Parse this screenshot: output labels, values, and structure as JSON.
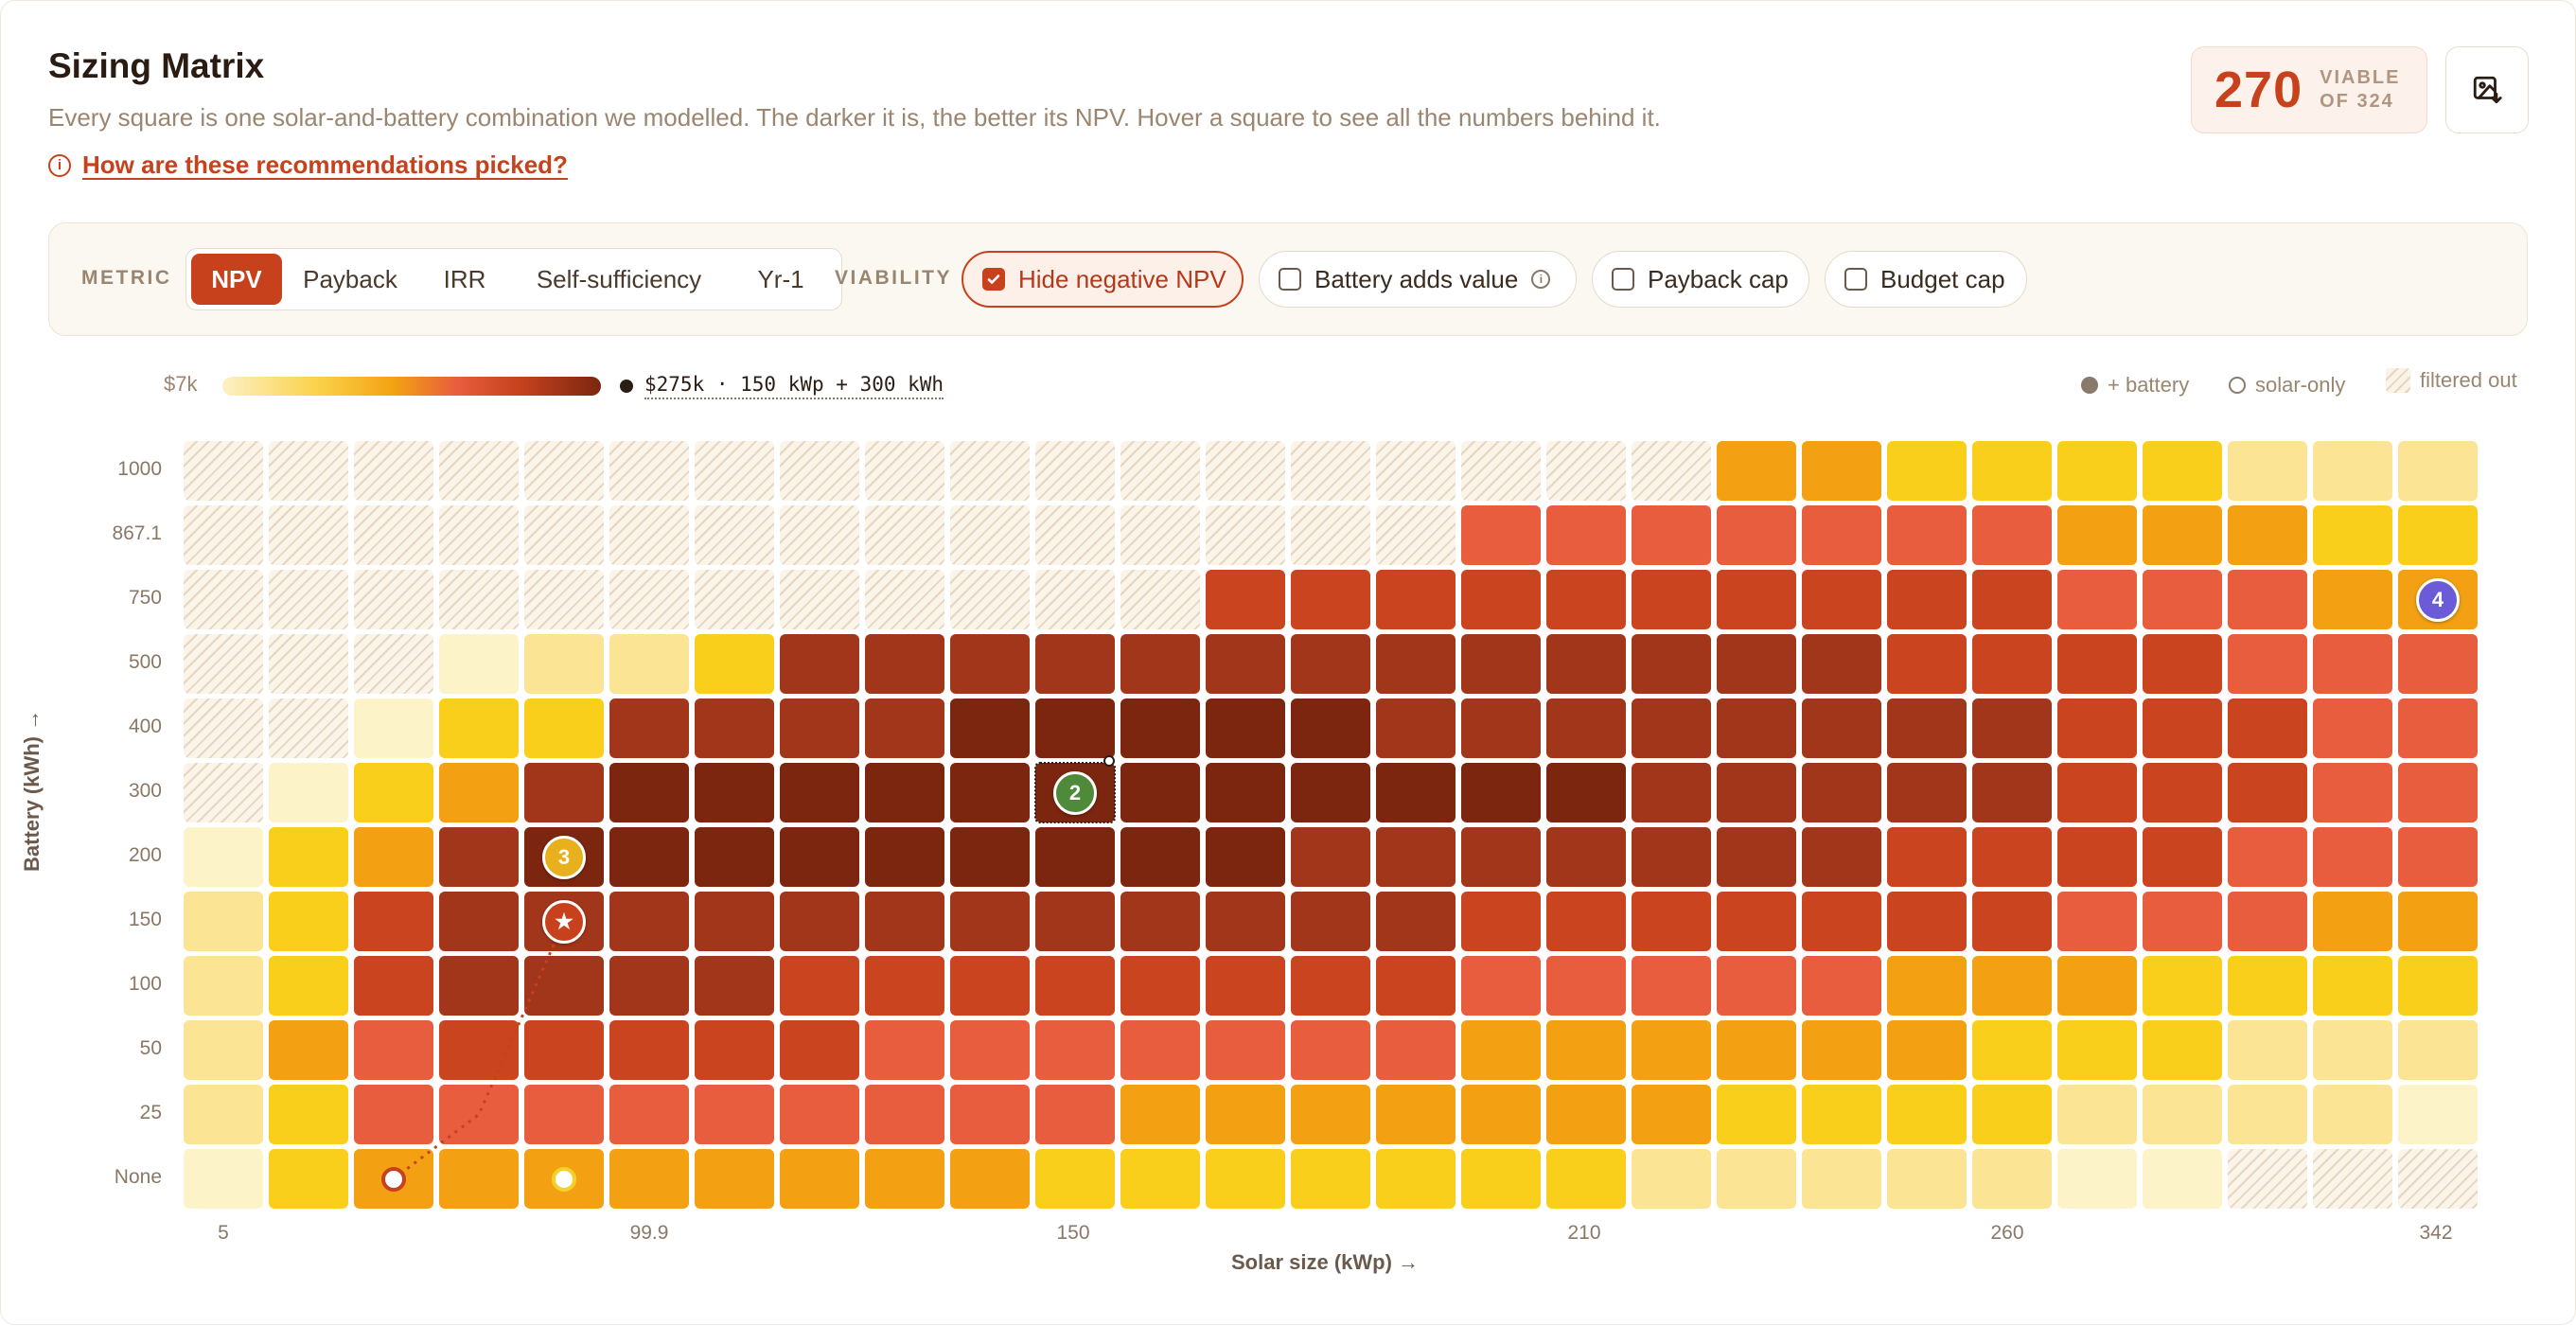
{
  "header": {
    "title": "Sizing Matrix",
    "subtitle": "Every square is one solar-and-battery combination we modelled. The darker it is, the better its NPV. Hover a square to see all the numbers behind it.",
    "help_link": "How are these recommendations picked?",
    "viable_count": "270",
    "viable_label_1": "VIABLE",
    "viable_label_2": "OF 324"
  },
  "icons": {
    "help": "info-circle-icon",
    "export": "image-export-icon"
  },
  "controls": {
    "metric_label": "METRIC",
    "metric_options": [
      "NPV",
      "Payback",
      "IRR",
      "Self-sufficiency",
      "Yr-1"
    ],
    "metric_selected": "NPV",
    "viability_label": "VIABILITY",
    "filters": [
      {
        "label": "Hide negative NPV",
        "checked": true
      },
      {
        "label": "Battery adds value",
        "checked": false
      },
      {
        "label": "Payback cap",
        "checked": false
      },
      {
        "label": "Budget cap",
        "checked": false
      }
    ]
  },
  "legend": {
    "min_label": "$7k",
    "max_label": "$275k · 150 kWp + 300 kWh",
    "key_battery": "+ battery",
    "key_solar_only": "solar-only",
    "key_filtered": "filtered out"
  },
  "colors": {
    "accent": "#c8411d",
    "scale": [
      "#fdf3c9",
      "#fbe595",
      "#f9cf1c",
      "#f3a112",
      "#e85d3d",
      "#c9441f",
      "#a2361a",
      "#7c2610"
    ]
  },
  "chart_data": {
    "type": "heatmap",
    "metric": "NPV",
    "xlabel": "Solar size (kWp) →",
    "ylabel": "Battery (kWh) →",
    "x_tick_labels": [
      "5",
      "99.9",
      "150",
      "210",
      "260",
      "342"
    ],
    "y_categories": [
      "1000",
      "867.1",
      "750",
      "500",
      "400",
      "300",
      "200",
      "150",
      "100",
      "50",
      "25",
      "None"
    ],
    "color_level_note": "integer 1-7 = shade level (1 lightest, 7 darkest); 0 = filtered out",
    "levels": [
      [
        0,
        0,
        0,
        0,
        0,
        0,
        0,
        0,
        0,
        0,
        0,
        0,
        0,
        0,
        0,
        0,
        0,
        0,
        3,
        3,
        2,
        2,
        2,
        2,
        1,
        1,
        1
      ],
      [
        0,
        0,
        0,
        0,
        0,
        0,
        0,
        0,
        0,
        0,
        0,
        0,
        0,
        0,
        0,
        4,
        4,
        4,
        4,
        4,
        4,
        4,
        3,
        3,
        3,
        2,
        2
      ],
      [
        0,
        0,
        0,
        0,
        0,
        0,
        0,
        0,
        0,
        0,
        0,
        0,
        5,
        5,
        5,
        5,
        5,
        5,
        5,
        5,
        5,
        5,
        4,
        4,
        4,
        3,
        3
      ],
      [
        0,
        0,
        0,
        0.5,
        1,
        1,
        2,
        6,
        6,
        6,
        6,
        6,
        6,
        6,
        6,
        6,
        6,
        6,
        6,
        6,
        5,
        5,
        5,
        5,
        4,
        4,
        4
      ],
      [
        0,
        0,
        0.5,
        2,
        2,
        6,
        6,
        6,
        6,
        7,
        7,
        7,
        7,
        7,
        6,
        6,
        6,
        6,
        6,
        6,
        6,
        6,
        5,
        5,
        5,
        4,
        4
      ],
      [
        0,
        0.5,
        2,
        3,
        6,
        7,
        7,
        7,
        7,
        7,
        7,
        7,
        7,
        7,
        7,
        7,
        7,
        6,
        6,
        6,
        6,
        6,
        5,
        5,
        5,
        4,
        4
      ],
      [
        0.5,
        2,
        3,
        6,
        7,
        7,
        7,
        7,
        7,
        7,
        7,
        7,
        7,
        6,
        6,
        6,
        6,
        6,
        6,
        6,
        5,
        5,
        5,
        5,
        4,
        4,
        4
      ],
      [
        1,
        2,
        5,
        6,
        6,
        6,
        6,
        6,
        6,
        6,
        6,
        6,
        6,
        6,
        6,
        5,
        5,
        5,
        5,
        5,
        5,
        5,
        4,
        4,
        4,
        3,
        3
      ],
      [
        1,
        2,
        5,
        6,
        6,
        6,
        6,
        5,
        5,
        5,
        5,
        5,
        5,
        5,
        5,
        4,
        4,
        4,
        4,
        4,
        3,
        3,
        3,
        2,
        2,
        2,
        2
      ],
      [
        1,
        3,
        4,
        5,
        5,
        5,
        5,
        5,
        4,
        4,
        4,
        4,
        4,
        4,
        4,
        3,
        3,
        3,
        3,
        3,
        3,
        2,
        2,
        2,
        1,
        1,
        1
      ],
      [
        1,
        2,
        4,
        4,
        4,
        4,
        4,
        4,
        4,
        4,
        4,
        3,
        3,
        3,
        3,
        3,
        3,
        3,
        2,
        2,
        2,
        2,
        1,
        1,
        1,
        1,
        0.5
      ],
      [
        0.5,
        2,
        3,
        3,
        3,
        3,
        3,
        3,
        3,
        3,
        2,
        2,
        2,
        2,
        2,
        2,
        2,
        1,
        1,
        1,
        1,
        1,
        0.5,
        0.5,
        0,
        0,
        0
      ]
    ],
    "best_npv": {
      "value": "$275k",
      "solar_kWp": 150,
      "battery_kWh": 300
    },
    "markers": [
      {
        "label": "2",
        "type": "battery",
        "color": "#4e8a3a",
        "col": 10,
        "row": 5
      },
      {
        "label": "3",
        "type": "battery",
        "color": "#e8b01c",
        "col": 4,
        "row": 6
      },
      {
        "label": "★",
        "type": "battery",
        "color": "#c8411d",
        "col": 4,
        "row": 7
      },
      {
        "label": "4",
        "type": "battery",
        "color": "#6b5bd6",
        "col": 26,
        "row": 2
      },
      {
        "label": "",
        "type": "solar-only",
        "color": "#c8411d",
        "col": 2,
        "row": 11
      },
      {
        "label": "",
        "type": "solar-only",
        "color": "#f2d22a",
        "col": 4,
        "row": 11
      }
    ]
  }
}
